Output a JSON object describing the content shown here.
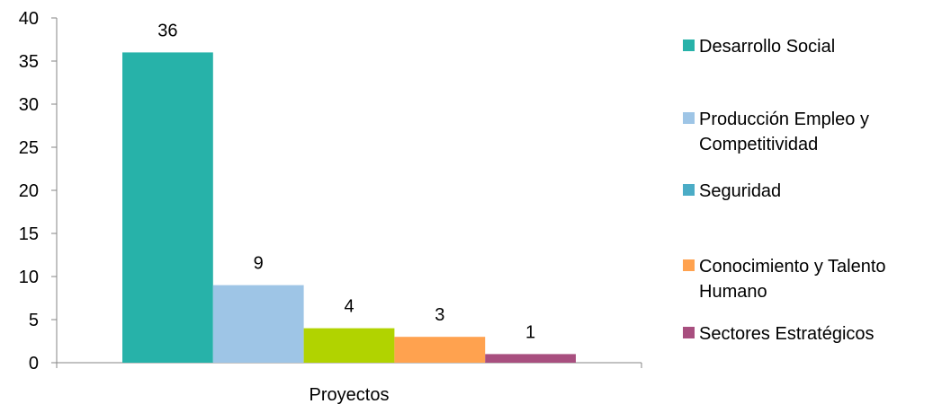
{
  "chart_data": {
    "type": "bar",
    "categories": [
      "Proyectos"
    ],
    "series": [
      {
        "name": "Desarrollo Social",
        "values": [
          36
        ],
        "color": "#27b2a9"
      },
      {
        "name": "Producción Empleo y Competitividad",
        "values": [
          9
        ],
        "color": "#9ec5e6"
      },
      {
        "name": "Seguridad",
        "values": [
          4
        ],
        "color": "#b1d300",
        "legend_color": "#4bacc6"
      },
      {
        "name": "Conocimiento y Talento Humano",
        "values": [
          3
        ],
        "color": "#ffa24f"
      },
      {
        "name": "Sectores Estratégicos",
        "values": [
          1
        ],
        "color": "#a84f7f"
      }
    ],
    "title": "",
    "xlabel": "",
    "ylabel": "",
    "ylim": [
      0,
      40
    ],
    "yticks": [
      0,
      5,
      10,
      15,
      20,
      25,
      30,
      35,
      40
    ],
    "grid": false,
    "legend_position": "right",
    "data_labels": true
  }
}
